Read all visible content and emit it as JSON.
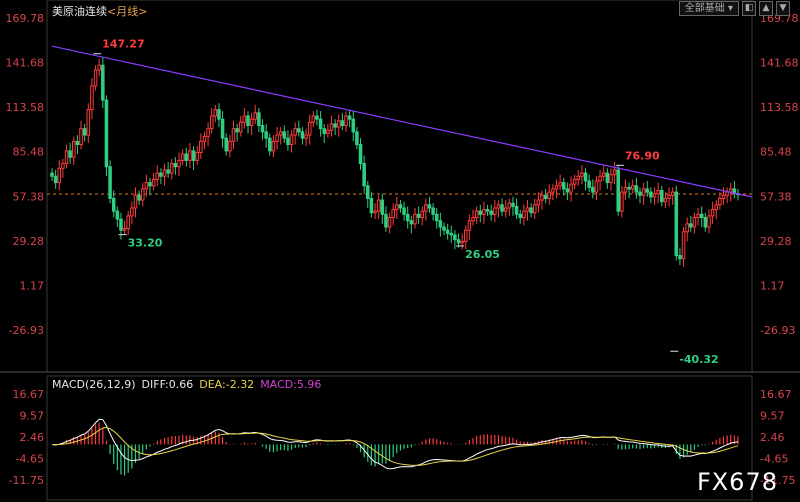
{
  "header": {
    "title": "美原油连续",
    "period": "<月线>",
    "menu_label": "全部基础"
  },
  "macd_legend": {
    "name": "MACD(26,12,9)",
    "diff": "DIFF:0.66",
    "dea": "DEA:-2.32",
    "macd": "MACD:5.96"
  },
  "watermark": "FX678",
  "colors": {
    "up": "#ff3b3b",
    "down": "#2ecf82",
    "trendline": "#8a3cff",
    "current_price_line": "#e07a1a",
    "diff_line": "#ffffff",
    "dea_line": "#e8d44a"
  },
  "chart_data": [
    {
      "type": "candlestick",
      "title": "美原油连续",
      "timeframe": "monthly",
      "y_axis_ticks": [
        "169.78",
        "141.68",
        "113.58",
        "85.48",
        "57.38",
        "29.28",
        "1.17",
        "-26.93"
      ],
      "ylim": [
        -55,
        172
      ],
      "grid": false,
      "current_price": 58.8,
      "annotations": [
        {
          "text": "147.27",
          "value": 147.27,
          "kind": "high",
          "index": 13
        },
        {
          "text": "33.20",
          "value": 33.2,
          "kind": "low",
          "index": 20
        },
        {
          "text": "26.05",
          "value": 26.05,
          "kind": "low",
          "index": 113
        },
        {
          "text": "76.90",
          "value": 76.9,
          "kind": "high",
          "index": 157
        },
        {
          "text": "-40.32",
          "value": -40.32,
          "kind": "low",
          "index": 172
        }
      ],
      "trendline": {
        "from": {
          "index": 0,
          "value": 152
        },
        "to": {
          "index": 190,
          "value": 57
        }
      },
      "closes": [
        70,
        66,
        75,
        78,
        86,
        82,
        92,
        90,
        100,
        96,
        112,
        127,
        137,
        140,
        118,
        76,
        56,
        48,
        43,
        36,
        37,
        45,
        50,
        58,
        55,
        62,
        66,
        64,
        68,
        72,
        70,
        74,
        72,
        78,
        76,
        80,
        84,
        80,
        86,
        80,
        85,
        92,
        95,
        100,
        108,
        112,
        106,
        94,
        86,
        92,
        100,
        98,
        104,
        108,
        102,
        106,
        110,
        102,
        98,
        94,
        86,
        92,
        96,
        98,
        94,
        90,
        96,
        100,
        98,
        94,
        96,
        104,
        108,
        106,
        100,
        97,
        99,
        103,
        101,
        105,
        102,
        108,
        106,
        98,
        90,
        78,
        64,
        56,
        47,
        48,
        55,
        46,
        38,
        44,
        49,
        52,
        50,
        46,
        42,
        40,
        46,
        44,
        48,
        52,
        50,
        46,
        42,
        38,
        36,
        34,
        33,
        30,
        28,
        29,
        36,
        42,
        44,
        48,
        46,
        49,
        48,
        46,
        50,
        52,
        48,
        50,
        53,
        51,
        46,
        44,
        48,
        50,
        47,
        52,
        55,
        58,
        56,
        60,
        62,
        64,
        66,
        62,
        60,
        65,
        68,
        70,
        72,
        67,
        63,
        60,
        67,
        70,
        72,
        66,
        71,
        74,
        48,
        60,
        63,
        62,
        64,
        60,
        58,
        62,
        60,
        57,
        59,
        61,
        54,
        56,
        58,
        60,
        20,
        18,
        35,
        40,
        38,
        44,
        46,
        44,
        38,
        45,
        49,
        52,
        56,
        58,
        60,
        62,
        59,
        58.8
      ],
      "macd": {
        "y_axis_ticks": [
          "16.67",
          "9.57",
          "2.46",
          "-4.65",
          "-11.75"
        ],
        "ylim": [
          -17,
          17
        ],
        "diff": 0.66,
        "dea": -2.32,
        "macd": 5.96
      }
    }
  ]
}
